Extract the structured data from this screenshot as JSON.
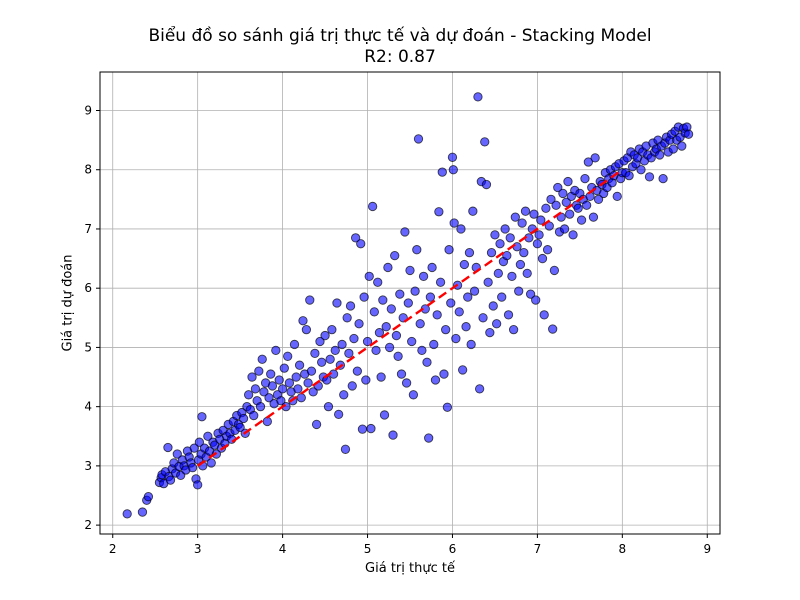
{
  "chart_data": {
    "type": "scatter",
    "title": "Biểu đồ so sánh giá trị thực tế và dự đoán - Stacking Model",
    "subtitle": "R2: 0.87",
    "xlabel": "Giá trị thực tế",
    "ylabel": "Giá trị dự đoán",
    "xlim": [
      1.85,
      9.15
    ],
    "ylim": [
      1.85,
      9.65
    ],
    "xticks": [
      2,
      3,
      4,
      5,
      6,
      7,
      8,
      9
    ],
    "yticks": [
      2,
      3,
      4,
      5,
      6,
      7,
      8,
      9
    ],
    "grid": true,
    "point_color": "#0000ff",
    "point_edge_color": "#000000",
    "reference_line": {
      "x": [
        3.0,
        8.0
      ],
      "y": [
        3.0,
        8.0
      ],
      "color": "#ff0000",
      "style": "dashed"
    },
    "points": [
      [
        2.17,
        2.19
      ],
      [
        2.35,
        2.22
      ],
      [
        2.4,
        2.42
      ],
      [
        2.42,
        2.48
      ],
      [
        2.55,
        2.72
      ],
      [
        2.57,
        2.8
      ],
      [
        2.58,
        2.85
      ],
      [
        2.6,
        2.7
      ],
      [
        2.62,
        2.9
      ],
      [
        2.65,
        3.31
      ],
      [
        2.66,
        2.82
      ],
      [
        2.68,
        2.76
      ],
      [
        2.7,
        2.95
      ],
      [
        2.72,
        3.05
      ],
      [
        2.74,
        2.88
      ],
      [
        2.76,
        3.2
      ],
      [
        2.78,
        2.99
      ],
      [
        2.8,
        2.84
      ],
      [
        2.82,
        3.1
      ],
      [
        2.84,
        3.0
      ],
      [
        2.86,
        2.93
      ],
      [
        2.88,
        3.25
      ],
      [
        2.9,
        3.15
      ],
      [
        2.92,
        3.05
      ],
      [
        2.94,
        2.97
      ],
      [
        2.96,
        3.3
      ],
      [
        2.98,
        2.78
      ],
      [
        3.0,
        2.68
      ],
      [
        3.01,
        3.1
      ],
      [
        3.02,
        3.4
      ],
      [
        3.04,
        3.2
      ],
      [
        3.05,
        3.83
      ],
      [
        3.06,
        3.0
      ],
      [
        3.08,
        3.3
      ],
      [
        3.1,
        3.15
      ],
      [
        3.12,
        3.5
      ],
      [
        3.14,
        3.25
      ],
      [
        3.16,
        3.05
      ],
      [
        3.18,
        3.4
      ],
      [
        3.2,
        3.35
      ],
      [
        3.22,
        3.2
      ],
      [
        3.24,
        3.55
      ],
      [
        3.26,
        3.45
      ],
      [
        3.28,
        3.3
      ],
      [
        3.3,
        3.6
      ],
      [
        3.32,
        3.38
      ],
      [
        3.34,
        3.5
      ],
      [
        3.36,
        3.7
      ],
      [
        3.38,
        3.55
      ],
      [
        3.4,
        3.45
      ],
      [
        3.42,
        3.75
      ],
      [
        3.44,
        3.6
      ],
      [
        3.46,
        3.85
      ],
      [
        3.48,
        3.7
      ],
      [
        3.5,
        3.65
      ],
      [
        3.52,
        3.9
      ],
      [
        3.54,
        3.8
      ],
      [
        3.56,
        3.55
      ],
      [
        3.58,
        4.0
      ],
      [
        3.6,
        4.2
      ],
      [
        3.62,
        3.95
      ],
      [
        3.64,
        4.5
      ],
      [
        3.66,
        3.85
      ],
      [
        3.68,
        4.3
      ],
      [
        3.7,
        4.1
      ],
      [
        3.72,
        4.6
      ],
      [
        3.74,
        4.0
      ],
      [
        3.76,
        4.8
      ],
      [
        3.78,
        4.25
      ],
      [
        3.8,
        4.4
      ],
      [
        3.82,
        3.75
      ],
      [
        3.84,
        4.15
      ],
      [
        3.86,
        4.55
      ],
      [
        3.88,
        4.35
      ],
      [
        3.9,
        4.05
      ],
      [
        3.92,
        4.95
      ],
      [
        3.94,
        4.2
      ],
      [
        3.96,
        4.45
      ],
      [
        3.98,
        4.1
      ],
      [
        4.0,
        4.3
      ],
      [
        4.02,
        4.65
      ],
      [
        4.04,
        4.0
      ],
      [
        4.06,
        4.85
      ],
      [
        4.08,
        4.4
      ],
      [
        4.1,
        4.25
      ],
      [
        4.12,
        4.1
      ],
      [
        4.14,
        5.05
      ],
      [
        4.16,
        4.5
      ],
      [
        4.18,
        4.3
      ],
      [
        4.2,
        4.7
      ],
      [
        4.22,
        4.15
      ],
      [
        4.24,
        5.45
      ],
      [
        4.26,
        4.55
      ],
      [
        4.28,
        5.3
      ],
      [
        4.3,
        4.4
      ],
      [
        4.32,
        5.8
      ],
      [
        4.34,
        4.6
      ],
      [
        4.36,
        4.25
      ],
      [
        4.38,
        4.9
      ],
      [
        4.4,
        3.7
      ],
      [
        4.42,
        4.35
      ],
      [
        4.44,
        5.1
      ],
      [
        4.46,
        4.75
      ],
      [
        4.48,
        4.5
      ],
      [
        4.5,
        5.2
      ],
      [
        4.52,
        4.45
      ],
      [
        4.54,
        4.0
      ],
      [
        4.56,
        4.8
      ],
      [
        4.58,
        5.3
      ],
      [
        4.6,
        4.55
      ],
      [
        4.62,
        4.95
      ],
      [
        4.64,
        5.75
      ],
      [
        4.66,
        3.87
      ],
      [
        4.68,
        4.7
      ],
      [
        4.7,
        5.05
      ],
      [
        4.72,
        4.2
      ],
      [
        4.74,
        3.28
      ],
      [
        4.76,
        5.5
      ],
      [
        4.78,
        4.9
      ],
      [
        4.8,
        5.7
      ],
      [
        4.82,
        4.35
      ],
      [
        4.84,
        5.15
      ],
      [
        4.86,
        6.85
      ],
      [
        4.88,
        4.6
      ],
      [
        4.9,
        5.4
      ],
      [
        4.92,
        6.75
      ],
      [
        4.94,
        3.62
      ],
      [
        4.96,
        5.85
      ],
      [
        4.98,
        4.45
      ],
      [
        5.0,
        5.1
      ],
      [
        5.02,
        6.2
      ],
      [
        5.04,
        3.63
      ],
      [
        5.06,
        7.38
      ],
      [
        5.08,
        5.6
      ],
      [
        5.1,
        4.95
      ],
      [
        5.12,
        6.1
      ],
      [
        5.14,
        5.25
      ],
      [
        5.16,
        4.5
      ],
      [
        5.18,
        5.8
      ],
      [
        5.2,
        3.86
      ],
      [
        5.22,
        5.35
      ],
      [
        5.24,
        6.35
      ],
      [
        5.26,
        5.0
      ],
      [
        5.28,
        5.65
      ],
      [
        5.3,
        3.52
      ],
      [
        5.32,
        6.55
      ],
      [
        5.34,
        5.2
      ],
      [
        5.36,
        4.85
      ],
      [
        5.38,
        5.9
      ],
      [
        5.4,
        4.55
      ],
      [
        5.42,
        5.5
      ],
      [
        5.44,
        6.95
      ],
      [
        5.46,
        4.4
      ],
      [
        5.48,
        5.75
      ],
      [
        5.5,
        6.3
      ],
      [
        5.52,
        5.1
      ],
      [
        5.54,
        4.2
      ],
      [
        5.56,
        5.95
      ],
      [
        5.58,
        6.65
      ],
      [
        5.6,
        8.52
      ],
      [
        5.62,
        5.4
      ],
      [
        5.64,
        4.95
      ],
      [
        5.66,
        6.2
      ],
      [
        5.68,
        5.65
      ],
      [
        5.7,
        4.75
      ],
      [
        5.72,
        3.47
      ],
      [
        5.74,
        5.85
      ],
      [
        5.76,
        6.35
      ],
      [
        5.78,
        5.05
      ],
      [
        5.8,
        4.45
      ],
      [
        5.82,
        5.55
      ],
      [
        5.84,
        7.29
      ],
      [
        5.86,
        6.1
      ],
      [
        5.88,
        7.96
      ],
      [
        5.9,
        4.55
      ],
      [
        5.92,
        5.3
      ],
      [
        5.94,
        3.99
      ],
      [
        5.96,
        6.65
      ],
      [
        5.98,
        5.75
      ],
      [
        6.0,
        8.21
      ],
      [
        6.01,
        8.0
      ],
      [
        6.02,
        7.1
      ],
      [
        6.04,
        5.15
      ],
      [
        6.06,
        6.05
      ],
      [
        6.08,
        5.6
      ],
      [
        6.1,
        7.0
      ],
      [
        6.12,
        4.62
      ],
      [
        6.14,
        6.4
      ],
      [
        6.16,
        5.35
      ],
      [
        6.18,
        5.85
      ],
      [
        6.2,
        6.6
      ],
      [
        6.22,
        5.05
      ],
      [
        6.24,
        7.3
      ],
      [
        6.26,
        5.95
      ],
      [
        6.28,
        6.35
      ],
      [
        6.3,
        9.23
      ],
      [
        6.32,
        4.3
      ],
      [
        6.34,
        7.8
      ],
      [
        6.36,
        5.5
      ],
      [
        6.38,
        8.47
      ],
      [
        6.4,
        7.75
      ],
      [
        6.42,
        6.1
      ],
      [
        6.44,
        5.25
      ],
      [
        6.46,
        6.6
      ],
      [
        6.48,
        5.7
      ],
      [
        6.5,
        6.9
      ],
      [
        6.52,
        5.4
      ],
      [
        6.54,
        6.25
      ],
      [
        6.56,
        6.75
      ],
      [
        6.58,
        5.85
      ],
      [
        6.6,
        6.45
      ],
      [
        6.62,
        7.0
      ],
      [
        6.64,
        6.55
      ],
      [
        6.66,
        5.55
      ],
      [
        6.68,
        6.85
      ],
      [
        6.7,
        6.2
      ],
      [
        6.72,
        5.3
      ],
      [
        6.74,
        7.2
      ],
      [
        6.76,
        6.7
      ],
      [
        6.78,
        5.95
      ],
      [
        6.8,
        6.4
      ],
      [
        6.82,
        7.1
      ],
      [
        6.84,
        6.6
      ],
      [
        6.86,
        7.3
      ],
      [
        6.88,
        6.25
      ],
      [
        6.9,
        6.85
      ],
      [
        6.92,
        5.9
      ],
      [
        6.94,
        7.0
      ],
      [
        6.96,
        7.25
      ],
      [
        6.98,
        5.8
      ],
      [
        7.0,
        6.75
      ],
      [
        7.02,
        6.9
      ],
      [
        7.04,
        7.15
      ],
      [
        7.06,
        6.5
      ],
      [
        7.08,
        5.55
      ],
      [
        7.1,
        7.35
      ],
      [
        7.12,
        6.65
      ],
      [
        7.14,
        7.05
      ],
      [
        7.16,
        7.5
      ],
      [
        7.18,
        5.31
      ],
      [
        7.2,
        6.3
      ],
      [
        7.22,
        7.4
      ],
      [
        7.24,
        7.7
      ],
      [
        7.26,
        6.95
      ],
      [
        7.28,
        7.2
      ],
      [
        7.3,
        7.6
      ],
      [
        7.32,
        7.0
      ],
      [
        7.34,
        7.45
      ],
      [
        7.36,
        7.8
      ],
      [
        7.38,
        7.25
      ],
      [
        7.4,
        7.55
      ],
      [
        7.42,
        6.9
      ],
      [
        7.44,
        7.65
      ],
      [
        7.46,
        7.4
      ],
      [
        7.48,
        7.35
      ],
      [
        7.5,
        7.6
      ],
      [
        7.52,
        7.15
      ],
      [
        7.54,
        7.5
      ],
      [
        7.56,
        7.85
      ],
      [
        7.58,
        7.4
      ],
      [
        7.6,
        8.13
      ],
      [
        7.62,
        7.55
      ],
      [
        7.64,
        7.7
      ],
      [
        7.66,
        7.2
      ],
      [
        7.68,
        8.2
      ],
      [
        7.7,
        7.65
      ],
      [
        7.72,
        7.5
      ],
      [
        7.74,
        7.8
      ],
      [
        7.76,
        7.75
      ],
      [
        7.78,
        7.6
      ],
      [
        7.8,
        7.95
      ],
      [
        7.82,
        7.7
      ],
      [
        7.84,
        7.85
      ],
      [
        7.86,
        8.0
      ],
      [
        7.88,
        7.78
      ],
      [
        7.9,
        7.9
      ],
      [
        7.92,
        8.05
      ],
      [
        7.94,
        7.55
      ],
      [
        7.96,
        8.1
      ],
      [
        7.98,
        7.85
      ],
      [
        8.0,
        7.95
      ],
      [
        8.02,
        8.15
      ],
      [
        8.04,
        7.95
      ],
      [
        8.06,
        8.2
      ],
      [
        8.08,
        7.9
      ],
      [
        8.1,
        8.3
      ],
      [
        8.12,
        8.05
      ],
      [
        8.14,
        8.25
      ],
      [
        8.16,
        8.1
      ],
      [
        8.18,
        8.2
      ],
      [
        8.2,
        8.35
      ],
      [
        8.22,
        8.0
      ],
      [
        8.24,
        8.3
      ],
      [
        8.26,
        8.15
      ],
      [
        8.28,
        8.4
      ],
      [
        8.3,
        8.25
      ],
      [
        8.32,
        7.88
      ],
      [
        8.34,
        8.2
      ],
      [
        8.36,
        8.45
      ],
      [
        8.38,
        8.3
      ],
      [
        8.4,
        8.35
      ],
      [
        8.42,
        8.5
      ],
      [
        8.44,
        8.25
      ],
      [
        8.46,
        8.4
      ],
      [
        8.48,
        7.85
      ],
      [
        8.5,
        8.45
      ],
      [
        8.52,
        8.55
      ],
      [
        8.54,
        8.3
      ],
      [
        8.56,
        8.5
      ],
      [
        8.58,
        8.6
      ],
      [
        8.6,
        8.35
      ],
      [
        8.62,
        8.65
      ],
      [
        8.64,
        8.5
      ],
      [
        8.66,
        8.72
      ],
      [
        8.68,
        8.55
      ],
      [
        8.7,
        8.4
      ],
      [
        8.72,
        8.7
      ],
      [
        8.74,
        8.62
      ],
      [
        8.76,
        8.72
      ],
      [
        8.78,
        8.6
      ]
    ]
  }
}
